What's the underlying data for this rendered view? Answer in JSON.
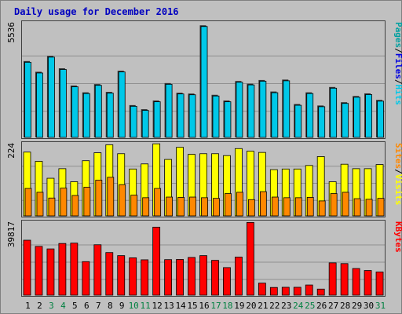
{
  "title": "Daily usage for December 2016",
  "chart_data": {
    "type": "bar",
    "categories": [
      "1",
      "2",
      "3",
      "4",
      "5",
      "6",
      "7",
      "8",
      "9",
      "10",
      "11",
      "12",
      "13",
      "14",
      "15",
      "16",
      "17",
      "18",
      "19",
      "20",
      "21",
      "22",
      "23",
      "24",
      "25",
      "26",
      "27",
      "28",
      "29",
      "30",
      "31"
    ],
    "weekend_days": [
      "3",
      "4",
      "10",
      "11",
      "17",
      "18",
      "24",
      "25",
      "31"
    ],
    "panels": [
      {
        "id": "hits",
        "max_label": "5536",
        "ylim": [
          0,
          5536
        ],
        "series": [
          {
            "name": "Pages",
            "color": "#00a0a0"
          },
          {
            "name": "Files",
            "color": "#0000e0"
          },
          {
            "name": "Hits",
            "color": "#00c8e8"
          }
        ],
        "label_parts": [
          "Pages",
          "/",
          "Files",
          "/",
          "Hits"
        ],
        "values": [
          3710,
          3190,
          3960,
          3360,
          2520,
          2190,
          2590,
          2210,
          3240,
          1570,
          1370,
          1790,
          2640,
          2170,
          2130,
          5450,
          2070,
          1790,
          2740,
          2610,
          2790,
          2230,
          2810,
          1620,
          2190,
          1550,
          2450,
          1710,
          2010,
          2140,
          1820
        ]
      },
      {
        "id": "visits",
        "max_label": "224",
        "ylim": [
          0,
          224
        ],
        "series": [
          {
            "name": "Sites",
            "color": "#ff8800"
          },
          {
            "name": "Visits",
            "color": "#ffff00"
          }
        ],
        "label_parts": [
          "Sites",
          "/",
          "Visits"
        ],
        "visits": [
          200,
          171,
          118,
          148,
          107,
          173,
          198,
          223,
          195,
          147,
          163,
          226,
          177,
          215,
          193,
          195,
          195,
          189,
          211,
          203,
          199,
          145,
          147,
          147,
          158,
          186,
          107,
          162,
          148,
          148,
          161
        ],
        "sites": [
          86,
          74,
          56,
          87,
          64,
          90,
          112,
          121,
          98,
          65,
          57,
          86,
          59,
          58,
          59,
          57,
          55,
          70,
          74,
          51,
          76,
          59,
          57,
          57,
          58,
          47,
          70,
          74,
          54,
          52,
          55
        ]
      },
      {
        "id": "kbytes",
        "max_label": "39817",
        "ylim": [
          0,
          39817
        ],
        "series": [
          {
            "name": "KBytes",
            "color": "#ff0000"
          }
        ],
        "label_parts": [
          "KBytes"
        ],
        "values": [
          30300,
          26900,
          25500,
          28500,
          28700,
          18500,
          27800,
          23500,
          21800,
          20600,
          19500,
          37500,
          19600,
          19700,
          20800,
          21800,
          19200,
          15200,
          21000,
          40100,
          6650,
          4250,
          4350,
          4350,
          5600,
          3350,
          17800,
          17400,
          14700,
          13600,
          12800
        ]
      }
    ]
  }
}
